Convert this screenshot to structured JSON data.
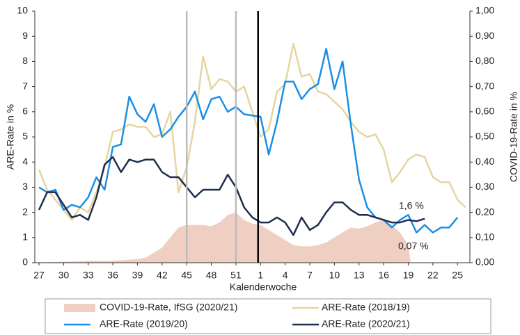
{
  "chart_data": {
    "type": "line",
    "x_label": "Kalenderwoche",
    "y_label": "ARE-Rate in %",
    "y2_label": "COVID-19-Rate in %",
    "categories": [
      "27",
      null,
      null,
      "30",
      null,
      null,
      "33",
      null,
      null,
      "36",
      null,
      null,
      "39",
      null,
      null,
      "42",
      null,
      null,
      "45",
      null,
      null,
      "48",
      null,
      null,
      "51",
      null,
      null,
      "1",
      null,
      null,
      "4",
      null,
      null,
      "7",
      null,
      null,
      "10",
      null,
      null,
      "13",
      null,
      null,
      "16",
      null,
      null,
      "19",
      null,
      null,
      "22",
      null,
      null,
      "25",
      null
    ],
    "ylim": [
      0,
      10
    ],
    "yticks": [
      0,
      1,
      2,
      3,
      4,
      5,
      6,
      7,
      8,
      9,
      10
    ],
    "y2lim": [
      0,
      1
    ],
    "y2ticks": [
      {
        "value": 0,
        "label": "0,00"
      },
      {
        "value": 0.1,
        "label": "0,10"
      },
      {
        "value": 0.2,
        "label": "0,20"
      },
      {
        "value": 0.3,
        "label": "0,30"
      },
      {
        "value": 0.4,
        "label": "0,40"
      },
      {
        "value": 0.5,
        "label": "0,50"
      },
      {
        "value": 0.6,
        "label": "0,60"
      },
      {
        "value": 0.7,
        "label": "0,70"
      },
      {
        "value": 0.8,
        "label": "0,80"
      },
      {
        "value": 0.9,
        "label": "0,90"
      },
      {
        "value": 1,
        "label": "1,00"
      }
    ],
    "grid": false,
    "series": [
      {
        "name": "COVID-19-Rate, IfSG (2020/21)",
        "type": "area",
        "axis": "y2",
        "color": "#efcfc2",
        "values": [
          0.002,
          0.002,
          0.003,
          0.004,
          0.005,
          0.006,
          0.008,
          0.008,
          0.007,
          0.008,
          0.01,
          0.012,
          0.015,
          0.02,
          0.04,
          0.06,
          0.1,
          0.14,
          0.15,
          0.15,
          0.15,
          0.145,
          0.16,
          0.19,
          0.2,
          0.17,
          0.155,
          0.15,
          0.13,
          0.11,
          0.09,
          0.07,
          0.065,
          0.065,
          0.07,
          0.08,
          0.1,
          0.12,
          0.14,
          0.135,
          0.145,
          0.16,
          0.17,
          0.15,
          0.12,
          0.07,
          null,
          null,
          null,
          null,
          null,
          null,
          null
        ]
      },
      {
        "name": "ARE-Rate (2018/19)",
        "type": "line",
        "color": "#e5d5a0",
        "values": [
          3.7,
          2.9,
          2.5,
          2.1,
          1.7,
          2.2,
          2.0,
          2.8,
          3.8,
          5.2,
          5.3,
          5.5,
          5.4,
          5.4,
          5.0,
          5.1,
          6.0,
          2.8,
          3.8,
          5.6,
          8.2,
          6.9,
          7.3,
          7.2,
          6.8,
          7.0,
          6.0,
          5.0,
          5.3,
          6.8,
          7.1,
          8.7,
          7.4,
          7.5,
          6.8,
          6.7,
          6.4,
          6.1,
          5.6,
          5.2,
          5.0,
          5.1,
          4.5,
          3.2,
          3.6,
          4.1,
          4.3,
          4.2,
          3.4,
          3.2,
          3.2,
          2.5,
          2.2
        ]
      },
      {
        "name": "ARE-Rate (2019/20)",
        "type": "line",
        "color": "#1a8fe6",
        "values": [
          3.0,
          2.8,
          2.9,
          2.1,
          2.3,
          2.2,
          2.6,
          3.4,
          2.9,
          4.6,
          4.7,
          6.6,
          5.9,
          5.6,
          6.3,
          5.0,
          5.3,
          5.8,
          6.2,
          6.8,
          5.7,
          6.5,
          6.6,
          6.0,
          6.2,
          5.9,
          5.85,
          5.8,
          4.3,
          5.6,
          7.2,
          7.2,
          6.5,
          6.9,
          7.1,
          8.5,
          6.9,
          8.0,
          5.5,
          3.3,
          2.2,
          1.8,
          1.7,
          1.4,
          1.7,
          1.9,
          1.2,
          1.5,
          1.2,
          1.4,
          1.4,
          1.8,
          null
        ]
      },
      {
        "name": "ARE-Rate (2020/21)",
        "type": "line",
        "color": "#1f2d4f",
        "values": [
          2.1,
          2.8,
          2.8,
          2.3,
          1.8,
          1.9,
          1.7,
          2.6,
          3.9,
          4.2,
          3.6,
          4.1,
          4.0,
          4.1,
          4.1,
          3.6,
          3.4,
          3.4,
          3.0,
          2.6,
          2.9,
          2.9,
          2.9,
          3.5,
          3.0,
          2.2,
          1.8,
          1.6,
          1.6,
          1.8,
          1.6,
          1.1,
          1.8,
          1.3,
          1.5,
          2.0,
          2.4,
          2.4,
          2.1,
          1.9,
          1.9,
          1.8,
          1.7,
          1.6,
          1.6,
          1.7,
          1.65,
          1.75,
          null,
          null,
          null,
          null,
          null
        ]
      }
    ],
    "annotations": [
      "1,6 %",
      "0,07 %"
    ]
  }
}
